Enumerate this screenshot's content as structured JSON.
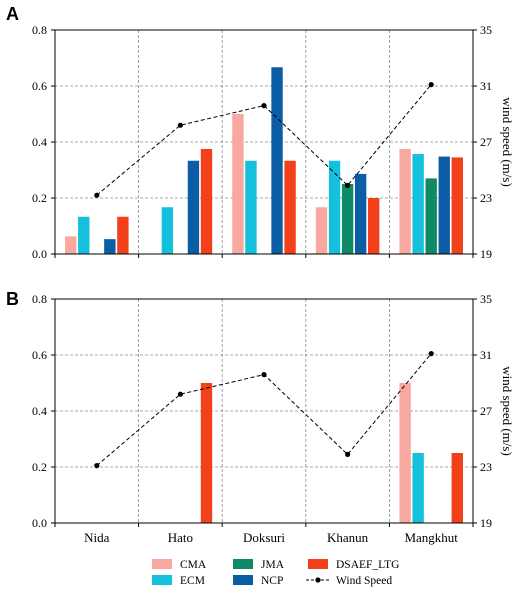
{
  "chart_data": [
    {
      "panel": "A",
      "type": "bar",
      "categories": [
        "Nida",
        "Hato",
        "Doksuri",
        "Khanun",
        "Mangkhut"
      ],
      "ylim": [
        0,
        0.8
      ],
      "yticks": [
        "0.0",
        "0.2",
        "0.4",
        "0.6",
        "0.8"
      ],
      "y2label": "wind speed (m/s)",
      "y2lim": [
        19,
        35
      ],
      "y2ticks": [
        "19",
        "23",
        "27",
        "31",
        "35"
      ],
      "grid": true,
      "series": [
        {
          "name": "CMA",
          "color": "#f7a99f",
          "values": [
            0.063,
            0,
            0.5,
            0.167,
            0.375
          ]
        },
        {
          "name": "ECM",
          "color": "#14c0db",
          "values": [
            0.133,
            0.167,
            0.333,
            0.333,
            0.357
          ]
        },
        {
          "name": "JMA",
          "color": "#0e8b66",
          "values": [
            0,
            0,
            0,
            0.25,
            0.27
          ]
        },
        {
          "name": "NCP",
          "color": "#0b5ea6",
          "values": [
            0.053,
            0.333,
            0.667,
            0.286,
            0.348
          ]
        },
        {
          "name": "DSAEF_LTG",
          "color": "#f2401a",
          "values": [
            0.133,
            0.375,
            0.333,
            0.2,
            0.345
          ]
        }
      ],
      "line": {
        "name": "Wind Speed",
        "values": [
          23.2,
          28.2,
          29.6,
          23.9,
          31.1
        ]
      }
    },
    {
      "panel": "B",
      "type": "bar",
      "categories": [
        "Nida",
        "Hato",
        "Doksuri",
        "Khanun",
        "Mangkhut"
      ],
      "ylim": [
        0,
        0.8
      ],
      "yticks": [
        "0.0",
        "0.2",
        "0.4",
        "0.6",
        "0.8"
      ],
      "y2label": "wind speed (m/s)",
      "y2lim": [
        19,
        35
      ],
      "y2ticks": [
        "19",
        "23",
        "27",
        "31",
        "35"
      ],
      "grid": true,
      "series": [
        {
          "name": "CMA",
          "color": "#f7a99f",
          "values": [
            0,
            0,
            0,
            0,
            0.5
          ]
        },
        {
          "name": "ECM",
          "color": "#14c0db",
          "values": [
            0,
            0,
            0,
            0,
            0.25
          ]
        },
        {
          "name": "JMA",
          "color": "#0e8b66",
          "values": [
            0,
            0,
            0,
            0,
            0
          ]
        },
        {
          "name": "NCP",
          "color": "#0b5ea6",
          "values": [
            0,
            0,
            0,
            0,
            0
          ]
        },
        {
          "name": "DSAEF_LTG",
          "color": "#f2401a",
          "values": [
            0,
            0.5,
            0,
            0,
            0.25
          ]
        }
      ],
      "line": {
        "name": "Wind Speed",
        "values": [
          23.1,
          28.2,
          29.6,
          23.9,
          31.1
        ]
      }
    }
  ],
  "legend": {
    "placement": "bottom",
    "items": [
      {
        "label": "CMA",
        "color": "#f7a99f",
        "kind": "bar"
      },
      {
        "label": "JMA",
        "color": "#0e8b66",
        "kind": "bar"
      },
      {
        "label": "DSAEF_LTG",
        "color": "#f2401a",
        "kind": "bar"
      },
      {
        "label": "ECM",
        "color": "#14c0db",
        "kind": "bar"
      },
      {
        "label": "NCP",
        "color": "#0b5ea6",
        "kind": "bar"
      },
      {
        "label": "Wind Speed",
        "color": "#000000",
        "kind": "line"
      }
    ]
  }
}
